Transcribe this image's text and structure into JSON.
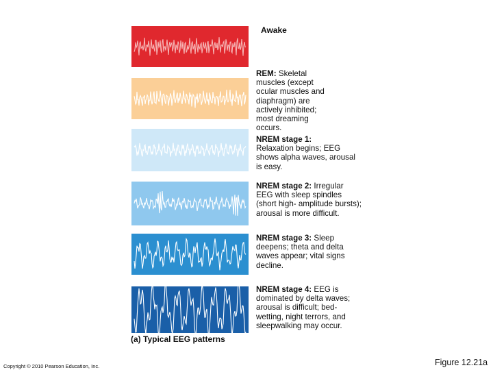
{
  "awake_label": "Awake",
  "panels": [
    {
      "name": "awake",
      "color": "#e0282e",
      "wave": "#f6b6b6"
    },
    {
      "name": "rem",
      "color": "#fbcf97",
      "wave": "#ffffff"
    },
    {
      "name": "nrem1",
      "color": "#cfe8f8",
      "wave": "#ffffff"
    },
    {
      "name": "nrem2",
      "color": "#8fc8ee",
      "wave": "#ffffff"
    },
    {
      "name": "nrem3",
      "color": "#2b8fd0",
      "wave": "#ffffff"
    },
    {
      "name": "nrem4",
      "color": "#1a5fa8",
      "wave": "#ffffff"
    }
  ],
  "stages": [
    {
      "name": "REM:",
      "text": " Skeletal muscles (except ocular muscles and diaphragm) are actively inhibited; most dreaming occurs."
    },
    {
      "name": "NREM stage 1:",
      "text": "Relaxation begins; EEG shows alpha waves, arousal is easy."
    },
    {
      "name": "NREM stage 2:",
      "text": " Irregular EEG with sleep spindles (short high- amplitude bursts); arousal is more difficult."
    },
    {
      "name": "NREM stage 3:",
      "text": " Sleep deepens; theta and delta waves appear; vital signs decline."
    },
    {
      "name": "NREM stage 4:",
      "text": " EEG is dominated by delta waves; arousal is difficult; bed-wetting, night terrors, and sleepwalking may occur."
    }
  ],
  "caption": "(a) Typical EEG patterns",
  "copyright": "Copyright © 2010 Pearson Education, Inc.",
  "figure_label": "Figure 12.21a"
}
